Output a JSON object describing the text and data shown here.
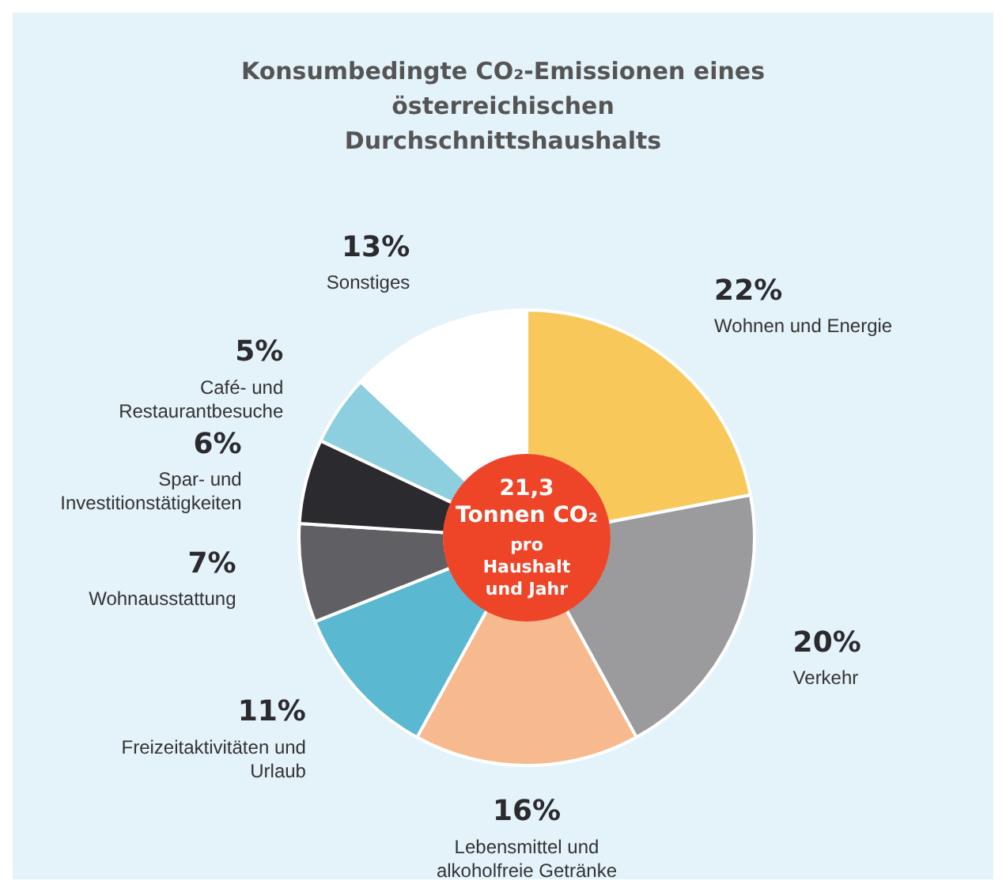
{
  "chart_data": {
    "type": "donut",
    "title": "Konsumbedingte CO₂-Emissionen eines österreichischen Durchschnittshaushalts",
    "categories": [
      "Wohnen und Energie",
      "Verkehr",
      "Lebensmittel und alkoholfreie Getränke",
      "Freizeitaktivitäten und Urlaub",
      "Wohnausstattung",
      "Spar- und Investitionstätigkeiten",
      "Café- und Restaurantbesuche",
      "Sonstiges"
    ],
    "values": [
      22,
      20,
      16,
      11,
      7,
      6,
      5,
      13
    ],
    "value_labels": [
      "22%",
      "20%",
      "16%",
      "11%",
      "7%",
      "6%",
      "5%",
      "13%"
    ],
    "colors": [
      "#f9c85a",
      "#9b9b9e",
      "#f7b98e",
      "#5ab8d0",
      "#606064",
      "#2b2b2f",
      "#8ecfdf",
      "#ffffff"
    ],
    "annotations": [
      "21,3",
      "Tonnen CO₂",
      "pro Haushalt und Jahr"
    ],
    "legend": false
  }
}
